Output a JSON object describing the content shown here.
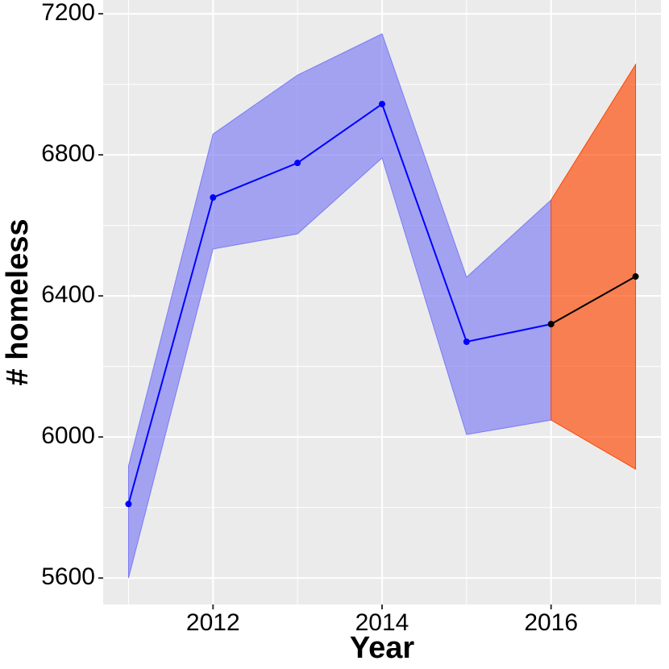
{
  "chart_data": {
    "type": "line",
    "x_label": "Year",
    "y_label": "# homeless",
    "xlim": [
      2010.7,
      2017.3
    ],
    "xticks": [
      2012,
      2014,
      2016
    ],
    "ylim": [
      5525,
      7239
    ],
    "yticks": [
      5600,
      6000,
      6400,
      6800,
      7200
    ],
    "grid": true,
    "series": [
      {
        "color": "#0000ff",
        "band_color": "#7b7bf5",
        "x": [
          2011,
          2012,
          2013,
          2014,
          2015,
          2016
        ],
        "values": [
          5810,
          6679,
          6777,
          6944,
          6270,
          6320
        ],
        "lower": [
          5600,
          6533,
          6576,
          6791,
          6007,
          6048
        ],
        "upper": [
          5918,
          6859,
          7026,
          7143,
          6453,
          6672
        ]
      },
      {
        "color": "#000000",
        "band_color": "#ff4500",
        "x": [
          2016,
          2017
        ],
        "values": [
          6320,
          6455
        ],
        "lower": [
          6048,
          5909
        ],
        "upper": [
          6672,
          7056
        ]
      }
    ]
  }
}
